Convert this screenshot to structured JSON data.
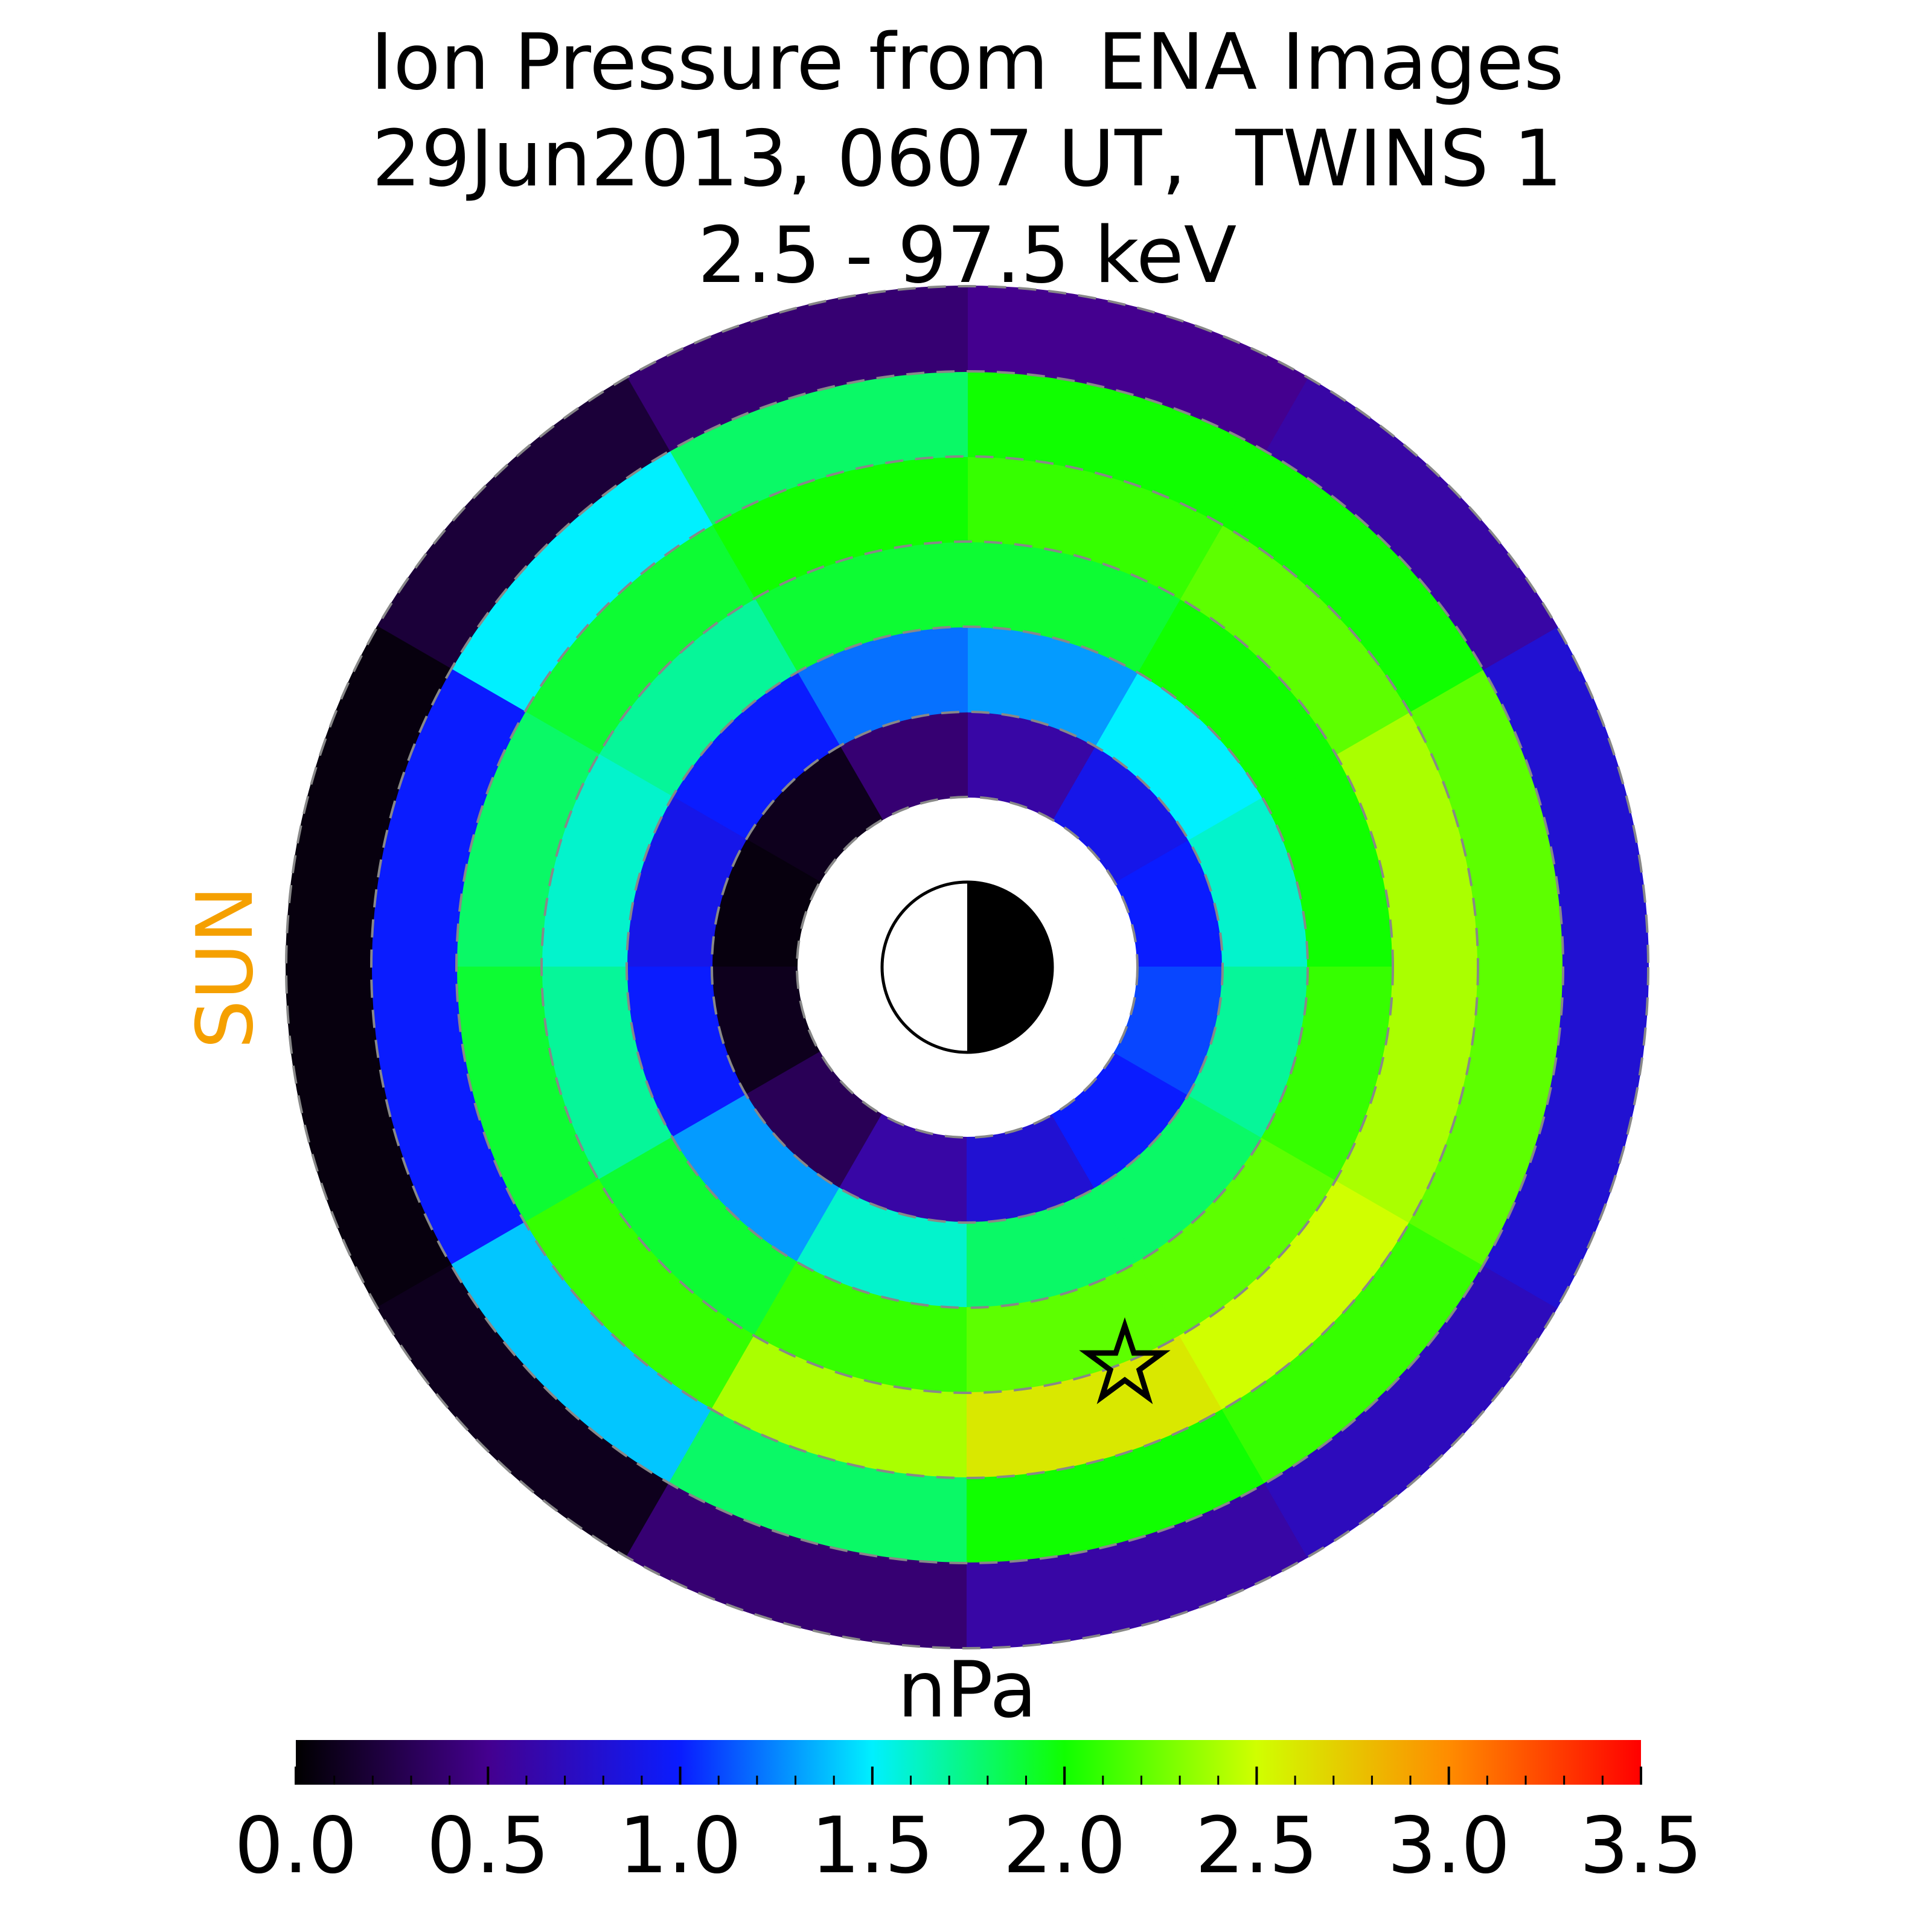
{
  "chart_data": {
    "type": "polar-heatmap",
    "title": [
      "Ion Pressure from  ENA Images",
      "29Jun2013, 0607 UT,  TWINS 1",
      "2.5 - 97.5 keV"
    ],
    "side_label": "SUN",
    "side_label_color": "#f5a000",
    "r_bins": [
      2,
      3,
      4,
      5,
      6,
      7,
      8
    ],
    "theta_bins": [
      0,
      30,
      60,
      90,
      120,
      150,
      180,
      210,
      240,
      270,
      300,
      330,
      360
    ],
    "values": [
      [
        1.0,
        0.9,
        0.6,
        0.4,
        0.1,
        0.05,
        0.1,
        0.3,
        0.6,
        0.8,
        1.0,
        1.1
      ],
      [
        1.6,
        1.5,
        1.3,
        1.2,
        1.0,
        0.9,
        1.0,
        1.3,
        1.6,
        1.8,
        1.8,
        1.7
      ],
      [
        2.0,
        2.0,
        1.9,
        1.9,
        1.7,
        1.6,
        1.7,
        1.9,
        2.1,
        2.2,
        2.2,
        2.1
      ],
      [
        2.4,
        2.2,
        2.1,
        2.0,
        1.9,
        1.8,
        1.9,
        2.1,
        2.4,
        2.6,
        2.5,
        2.4
      ],
      [
        2.2,
        2.0,
        2.0,
        1.8,
        1.5,
        1.0,
        1.0,
        1.4,
        1.8,
        2.0,
        2.1,
        2.2
      ],
      [
        0.8,
        0.6,
        0.5,
        0.4,
        0.2,
        0.05,
        0.05,
        0.1,
        0.4,
        0.6,
        0.7,
        0.8
      ]
    ],
    "rgrid": [
      2,
      3,
      4,
      5,
      6,
      7,
      8
    ],
    "colorbar_label": "nPa",
    "clim": [
      0,
      3.5
    ],
    "colormap": [
      "#000000",
      "#44008f",
      "#0a1cff",
      "#00f0ff",
      "#10ff00",
      "#d0ff00",
      "#ff8c00",
      "#ff0000"
    ],
    "cticks": [
      {
        "value": 0,
        "label": "0.0"
      },
      {
        "value": 0.5,
        "label": "0.5"
      },
      {
        "value": 1,
        "label": "1.0"
      },
      {
        "value": 1.5,
        "label": "1.5"
      },
      {
        "value": 2,
        "label": "2.0"
      },
      {
        "value": 2.5,
        "label": "2.5"
      },
      {
        "value": 3,
        "label": "3.0"
      },
      {
        "value": 3.5,
        "label": "3.5"
      }
    ],
    "cticks_minor": [
      0.1,
      0.2,
      0.3,
      0.4,
      0.6,
      0.7,
      0.8,
      0.9,
      1.1,
      1.2,
      1.3,
      1.4,
      1.6,
      1.7,
      1.8,
      1.9,
      2.1,
      2.2,
      2.3,
      2.4,
      2.6,
      2.7,
      2.8,
      2.9,
      3.1,
      3.2,
      3.3,
      3.4
    ]
  }
}
